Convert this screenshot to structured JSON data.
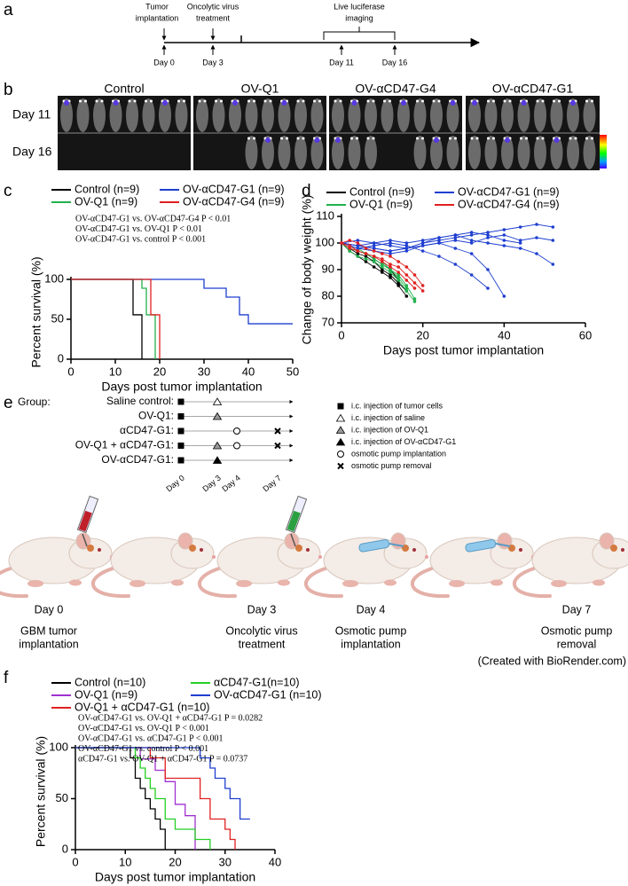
{
  "panel_labels": [
    "a",
    "b",
    "c",
    "d",
    "e",
    "f"
  ],
  "timeline": {
    "events": [
      [
        "Tumor",
        "implantation"
      ],
      [
        "Oncolytic virus",
        "treatment"
      ],
      [
        "Live luciferase",
        "imaging"
      ]
    ],
    "days": [
      "Day 0",
      "Day 3",
      "Day 11",
      "Day 16"
    ]
  },
  "imaging": {
    "groups": [
      "Control",
      "OV-Q1",
      "OV-αCD47-G4",
      "OV-αCD47-G1"
    ],
    "rows": [
      "Day 11",
      "Day 16"
    ]
  },
  "chart_data": [
    {
      "type": "line",
      "drawstyle": "steps-post",
      "xlabel": "Days post tumor implantation",
      "ylabel": "Percent survival (%)",
      "xlim": [
        0,
        50
      ],
      "xticks": [
        0,
        10,
        20,
        30,
        40,
        50
      ],
      "ylim": [
        0,
        100
      ],
      "yticks": [
        0,
        50,
        100
      ],
      "annotations": [
        "OV-αCD47-G1  vs.  OV-αCD47-G4   P < 0.01",
        "OV-αCD47-G1  vs.  OV-Q1  P < 0.01",
        "OV-αCD47-G1  vs.  control  P < 0.001"
      ],
      "series": [
        {
          "name": "Control (n=9)",
          "color": "#000000",
          "x": [
            0,
            14,
            16
          ],
          "values": [
            100,
            55.6,
            0
          ]
        },
        {
          "name": "OV-Q1 (n=9)",
          "color": "#22b14c",
          "x": [
            0,
            16,
            17,
            19
          ],
          "values": [
            100,
            88.9,
            55.6,
            0
          ]
        },
        {
          "name": "OV-αCD47-G1 (n=9)",
          "color": "#1f3fd0",
          "x": [
            0,
            30,
            35,
            38,
            40,
            50
          ],
          "values": [
            100,
            88.9,
            77.8,
            55.6,
            44.4,
            44.4
          ]
        },
        {
          "name": "OV-αCD47-G4 (n=9)",
          "color": "#e02020",
          "x": [
            0,
            18,
            20
          ],
          "values": [
            100,
            55.6,
            0
          ]
        }
      ]
    },
    {
      "type": "spaghetti",
      "xlabel": "Days post tumor implantation",
      "ylabel": "Change of body weight (%)",
      "xlim": [
        0,
        60
      ],
      "xticks": [
        0,
        20,
        40,
        60
      ],
      "ylim": [
        70,
        110
      ],
      "yticks": [
        70,
        80,
        90,
        100,
        110
      ],
      "series": [
        {
          "name": "Control (n=9)",
          "color": "#000000",
          "lines": [
            {
              "x": [
                0,
                2,
                4,
                6,
                8,
                10,
                12,
                14,
                16
              ],
              "values": [
                100,
                98,
                96,
                95,
                93,
                90,
                88,
                85,
                82
              ]
            },
            {
              "x": [
                0,
                2,
                4,
                6,
                8,
                10,
                12,
                14
              ],
              "values": [
                100,
                99,
                97,
                96,
                94,
                92,
                90,
                86
              ]
            },
            {
              "x": [
                0,
                2,
                4,
                6,
                8,
                10,
                12,
                14,
                16
              ],
              "values": [
                100,
                97,
                95,
                93,
                91,
                89,
                87,
                84,
                80
              ]
            }
          ]
        },
        {
          "name": "OV-Q1 (n=9)",
          "color": "#22b14c",
          "lines": [
            {
              "x": [
                0,
                2,
                4,
                6,
                8,
                10,
                12,
                14,
                16,
                18
              ],
              "values": [
                100,
                98,
                97,
                96,
                94,
                92,
                90,
                88,
                84,
                79
              ]
            },
            {
              "x": [
                0,
                2,
                4,
                6,
                8,
                10,
                12,
                14,
                16
              ],
              "values": [
                100,
                99,
                98,
                96,
                95,
                93,
                90,
                87,
                83
              ]
            },
            {
              "x": [
                0,
                2,
                4,
                6,
                8,
                10,
                12,
                14,
                16,
                18
              ],
              "values": [
                100,
                97,
                95,
                94,
                93,
                91,
                89,
                86,
                82,
                78
              ]
            }
          ]
        },
        {
          "name": "OV-αCD47-G1 (n=9)",
          "color": "#1f3fd0",
          "lines": [
            {
              "x": [
                0,
                4,
                8,
                12,
                16,
                20,
                24,
                28,
                32,
                36,
                40,
                44,
                48,
                52
              ],
              "values": [
                100,
                99,
                98,
                97,
                98,
                100,
                101,
                102,
                103,
                104,
                105,
                106,
                107,
                106
              ]
            },
            {
              "x": [
                0,
                4,
                8,
                12,
                16,
                20,
                24,
                28,
                32,
                36,
                40,
                44,
                48,
                52
              ],
              "values": [
                100,
                98,
                97,
                96,
                97,
                99,
                100,
                101,
                100,
                102,
                103,
                101,
                102,
                101
              ]
            },
            {
              "x": [
                0,
                4,
                8,
                12,
                16,
                20,
                24,
                28,
                32,
                36,
                40
              ],
              "values": [
                100,
                99,
                98,
                97,
                98,
                99,
                100,
                98,
                96,
                90,
                80
              ]
            },
            {
              "x": [
                0,
                4,
                8,
                12,
                16,
                20,
                24,
                28,
                32,
                36
              ],
              "values": [
                100,
                98,
                99,
                100,
                99,
                97,
                95,
                92,
                88,
                83
              ]
            },
            {
              "x": [
                0,
                4,
                8,
                12,
                16,
                20,
                24,
                28,
                32,
                36,
                40,
                44,
                48,
                52
              ],
              "values": [
                100,
                101,
                100,
                99,
                98,
                100,
                102,
                103,
                101,
                100,
                99,
                98,
                96,
                92
              ]
            },
            {
              "x": [
                0,
                4,
                8,
                12,
                16,
                20,
                24,
                28,
                32,
                36,
                40,
                44
              ],
              "values": [
                100,
                99,
                100,
                101,
                100,
                101,
                102,
                103,
                104,
                103,
                101,
                100
              ]
            }
          ]
        },
        {
          "name": "OV-αCD47-G4 (n=9)",
          "color": "#e02020",
          "lines": [
            {
              "x": [
                0,
                2,
                4,
                6,
                8,
                10,
                12,
                14,
                16,
                18,
                20
              ],
              "values": [
                100,
                99,
                97,
                96,
                95,
                94,
                92,
                91,
                88,
                85,
                82
              ]
            },
            {
              "x": [
                0,
                2,
                4,
                6,
                8,
                10,
                12,
                14,
                16,
                18
              ],
              "values": [
                100,
                98,
                97,
                96,
                95,
                93,
                91,
                89,
                86,
                83
              ]
            },
            {
              "x": [
                0,
                2,
                4,
                6,
                8,
                10,
                12,
                14,
                16,
                18,
                20
              ],
              "values": [
                100,
                101,
                100,
                98,
                97,
                96,
                95,
                93,
                91,
                88,
                84
              ]
            }
          ]
        }
      ]
    },
    {
      "type": "line",
      "drawstyle": "steps-post",
      "xlabel": "Days post tumor implantation",
      "ylabel": "Percent survival (%)",
      "xlim": [
        0,
        40
      ],
      "xticks": [
        0,
        10,
        20,
        30,
        40
      ],
      "ylim": [
        0,
        100
      ],
      "yticks": [
        0,
        50,
        100
      ],
      "annotations": [
        "OV-αCD47-G1  vs.  OV-Q1 + αCD47-G1   P = 0.0282",
        "OV-αCD47-G1  vs.  OV-Q1   P < 0.001",
        "OV-αCD47-G1  vs.  αCD47-G1   P < 0.001",
        "OV-αCD47-G1  vs.  control  P < 0.001",
        "αCD47-G1  vs.  OV-Q1 + αCD47-G1   P = 0.0737"
      ],
      "series": [
        {
          "name": "Control (n=10)",
          "color": "#000000",
          "x": [
            0,
            11,
            12,
            13,
            14,
            15,
            16,
            17,
            18
          ],
          "values": [
            100,
            90,
            70,
            60,
            50,
            40,
            30,
            20,
            0
          ]
        },
        {
          "name": "OV-Q1 (n=9)",
          "color": "#a030d0",
          "x": [
            0,
            13,
            16,
            18,
            20,
            22,
            24
          ],
          "values": [
            100,
            88.9,
            77.8,
            66.7,
            44.4,
            33.3,
            0
          ]
        },
        {
          "name": "OV-Q1 + αCD47-G1 (n=10)",
          "color": "#e02020",
          "x": [
            0,
            15,
            18,
            25,
            27,
            30,
            31,
            32
          ],
          "values": [
            100,
            90,
            70,
            50,
            30,
            20,
            10,
            0
          ]
        },
        {
          "name": "αCD47-G1(n=10)",
          "color": "#22d022",
          "x": [
            0,
            12,
            13,
            14,
            15,
            16,
            18,
            20,
            24,
            27
          ],
          "values": [
            100,
            90,
            80,
            70,
            60,
            50,
            30,
            20,
            10,
            0
          ]
        },
        {
          "name": "OV-αCD47-G1 (n=10)",
          "color": "#1f3fd0",
          "x": [
            0,
            25,
            27,
            28,
            30,
            31,
            33,
            35
          ],
          "values": [
            100,
            90,
            80,
            70,
            60,
            50,
            30,
            30
          ]
        }
      ]
    }
  ],
  "schedule": {
    "heading": "Group:",
    "groups": [
      "Saline control:",
      "OV-Q1:",
      "αCD47-G1:",
      "OV-Q1 + αCD47-G1:",
      "OV-αCD47-G1:"
    ],
    "days": [
      "Day 0",
      "Day 3",
      "Day 4",
      "Day 7"
    ],
    "legend": [
      "i.c. injection of tumor cells",
      "i.c. injection of saline",
      "i.c. injection of OV-Q1",
      "i.c. injection of OV-αCD47-G1",
      "osmotic pump implantation",
      "osmotic pump removal"
    ]
  },
  "illustration": {
    "steps": [
      {
        "day": "Day 0",
        "caption": [
          "GBM tumor",
          "implantation"
        ]
      },
      {
        "day": "Day 3",
        "caption": [
          "Oncolytic virus",
          "treatment"
        ]
      },
      {
        "day": "Day 4",
        "caption": [
          "Osmotic pump",
          "implantation"
        ]
      },
      {
        "day": "Day 7",
        "caption": [
          "Osmotic pump",
          "removal"
        ]
      }
    ],
    "credit": "(Created with BioRender.com)"
  }
}
